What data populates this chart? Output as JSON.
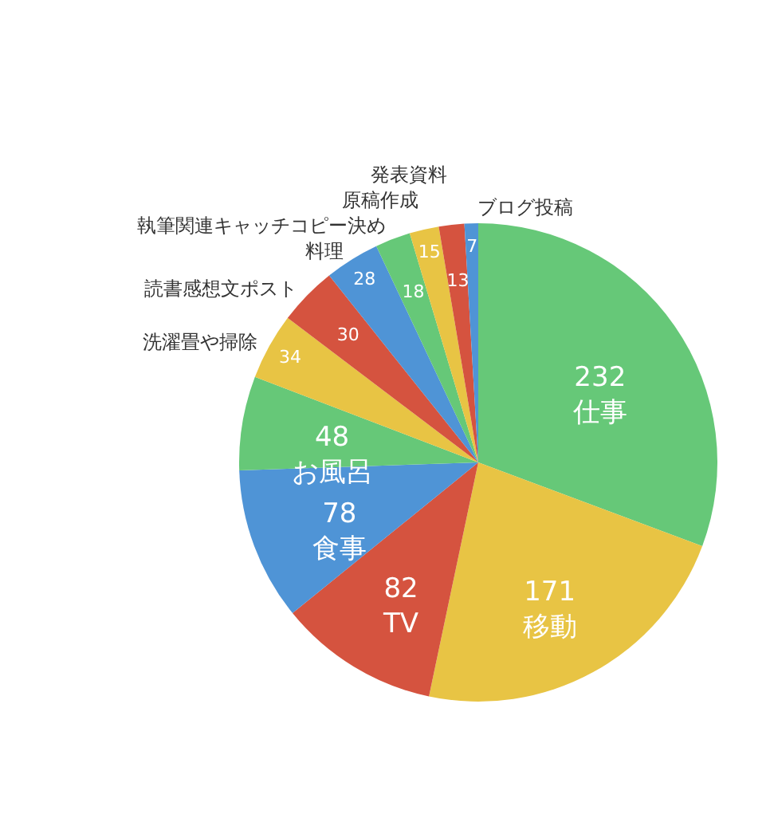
{
  "chart_data": {
    "type": "pie",
    "categories": [
      "仕事",
      "移動",
      "TV",
      "食事",
      "お風呂",
      "洗濯畳や掃除",
      "読書感想文ポスト",
      "料理",
      "執筆関連キャッチコピー決め",
      "原稿作成",
      "発表資料",
      "ブログ投稿"
    ],
    "values": [
      232,
      171,
      82,
      78,
      48,
      34,
      30,
      28,
      18,
      15,
      13,
      7
    ],
    "colors": [
      "#66c878",
      "#e8c444",
      "#d5533f",
      "#4f94d6",
      "#66c878",
      "#e8c444",
      "#d5533f",
      "#4f94d6",
      "#66c878",
      "#e8c444",
      "#d5533f",
      "#4f94d6"
    ],
    "data_labels": true
  }
}
